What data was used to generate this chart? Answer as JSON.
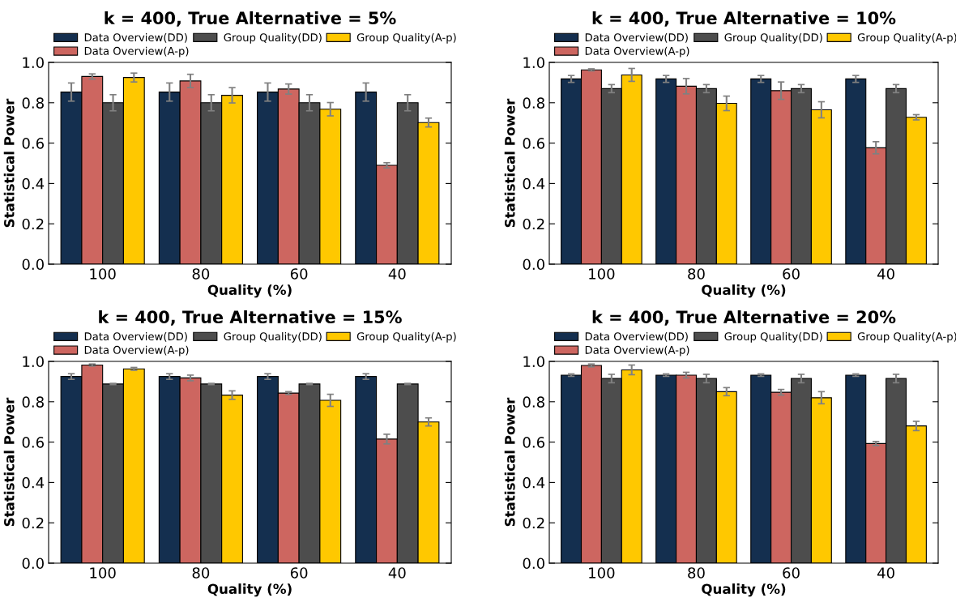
{
  "chart_data": [
    {
      "type": "bar",
      "title": "k = 400, True Alternative = 5%",
      "xlabel": "Quality (%)",
      "ylabel": "Statistical Power",
      "categories": [
        "100",
        "80",
        "60",
        "40"
      ],
      "ylim": [
        0,
        1
      ],
      "yticks": [
        {
          "value": 0,
          "label": "0.0"
        },
        {
          "value": 0.2,
          "label": "0.2"
        },
        {
          "value": 0.4,
          "label": "0.4"
        },
        {
          "value": 0.6,
          "label": "0.6"
        },
        {
          "value": 0.8,
          "label": "0.8"
        },
        {
          "value": 1,
          "label": "1.0"
        }
      ],
      "legend": "top",
      "grid": false,
      "series": [
        {
          "name": "Data Overview(DD)",
          "color": "#142f4f",
          "values": [
            0.853,
            0.853,
            0.853,
            0.853
          ],
          "errors": [
            0.045,
            0.045,
            0.045,
            0.045
          ]
        },
        {
          "name": "Data Overview(A-p)",
          "color": "#cd6660",
          "values": [
            0.93,
            0.908,
            0.868,
            0.49
          ],
          "errors": [
            0.013,
            0.033,
            0.025,
            0.013
          ]
        },
        {
          "name": "Group Quality(DD)",
          "color": "#4d4d4d",
          "values": [
            0.8,
            0.8,
            0.8,
            0.8
          ],
          "errors": [
            0.04,
            0.04,
            0.04,
            0.04
          ]
        },
        {
          "name": "Group Quality(A-p)",
          "color": "#ffc800",
          "values": [
            0.925,
            0.837,
            0.768,
            0.702
          ],
          "errors": [
            0.022,
            0.038,
            0.033,
            0.022
          ]
        }
      ]
    },
    {
      "type": "bar",
      "title": "k = 400, True Alternative = 10%",
      "xlabel": "Quality (%)",
      "ylabel": "Statistical Power",
      "categories": [
        "100",
        "80",
        "60",
        "40"
      ],
      "ylim": [
        0,
        1
      ],
      "yticks": [
        {
          "value": 0,
          "label": "0.0"
        },
        {
          "value": 0.2,
          "label": "0.2"
        },
        {
          "value": 0.4,
          "label": "0.4"
        },
        {
          "value": 0.6,
          "label": "0.6"
        },
        {
          "value": 0.8,
          "label": "0.8"
        },
        {
          "value": 1,
          "label": "1.0"
        }
      ],
      "legend": "top",
      "grid": false,
      "series": [
        {
          "name": "Data Overview(DD)",
          "color": "#142f4f",
          "values": [
            0.918,
            0.918,
            0.918,
            0.918
          ],
          "errors": [
            0.017,
            0.017,
            0.017,
            0.017
          ]
        },
        {
          "name": "Data Overview(A-p)",
          "color": "#cd6660",
          "values": [
            0.963,
            0.882,
            0.86,
            0.577
          ],
          "errors": [
            0.005,
            0.038,
            0.043,
            0.03
          ]
        },
        {
          "name": "Group Quality(DD)",
          "color": "#4d4d4d",
          "values": [
            0.87,
            0.87,
            0.87,
            0.87
          ],
          "errors": [
            0.02,
            0.02,
            0.02,
            0.02
          ]
        },
        {
          "name": "Group Quality(A-p)",
          "color": "#ffc800",
          "values": [
            0.938,
            0.797,
            0.765,
            0.728
          ],
          "errors": [
            0.032,
            0.036,
            0.04,
            0.013
          ]
        }
      ]
    },
    {
      "type": "bar",
      "title": "k = 400, True Alternative = 15%",
      "xlabel": "Quality (%)",
      "ylabel": "Statistical Power",
      "categories": [
        "100",
        "80",
        "60",
        "40"
      ],
      "ylim": [
        0,
        1
      ],
      "yticks": [
        {
          "value": 0,
          "label": "0.0"
        },
        {
          "value": 0.2,
          "label": "0.2"
        },
        {
          "value": 0.4,
          "label": "0.4"
        },
        {
          "value": 0.6,
          "label": "0.6"
        },
        {
          "value": 0.8,
          "label": "0.8"
        },
        {
          "value": 1,
          "label": "1.0"
        }
      ],
      "legend": "top",
      "grid": false,
      "series": [
        {
          "name": "Data Overview(DD)",
          "color": "#142f4f",
          "values": [
            0.925,
            0.925,
            0.925,
            0.925
          ],
          "errors": [
            0.014,
            0.014,
            0.014,
            0.014
          ]
        },
        {
          "name": "Data Overview(A-p)",
          "color": "#cd6660",
          "values": [
            0.982,
            0.918,
            0.843,
            0.615
          ],
          "errors": [
            0.005,
            0.014,
            0.007,
            0.024
          ]
        },
        {
          "name": "Group Quality(DD)",
          "color": "#4d4d4d",
          "values": [
            0.888,
            0.888,
            0.888,
            0.888
          ],
          "errors": [
            0.003,
            0.003,
            0.003,
            0.003
          ]
        },
        {
          "name": "Group Quality(A-p)",
          "color": "#ffc800",
          "values": [
            0.963,
            0.833,
            0.807,
            0.7
          ],
          "errors": [
            0.007,
            0.021,
            0.03,
            0.02
          ]
        }
      ]
    },
    {
      "type": "bar",
      "title": "k = 400, True Alternative = 20%",
      "xlabel": "Quality (%)",
      "ylabel": "Statistical Power",
      "categories": [
        "100",
        "80",
        "60",
        "40"
      ],
      "ylim": [
        0,
        1
      ],
      "yticks": [
        {
          "value": 0,
          "label": "0.0"
        },
        {
          "value": 0.2,
          "label": "0.2"
        },
        {
          "value": 0.4,
          "label": "0.4"
        },
        {
          "value": 0.6,
          "label": "0.6"
        },
        {
          "value": 0.8,
          "label": "0.8"
        },
        {
          "value": 1,
          "label": "1.0"
        }
      ],
      "legend": "top",
      "grid": false,
      "series": [
        {
          "name": "Data Overview(DD)",
          "color": "#142f4f",
          "values": [
            0.932,
            0.932,
            0.932,
            0.932
          ],
          "errors": [
            0.006,
            0.006,
            0.006,
            0.006
          ]
        },
        {
          "name": "Data Overview(A-p)",
          "color": "#cd6660",
          "values": [
            0.98,
            0.932,
            0.847,
            0.593
          ],
          "errors": [
            0.007,
            0.014,
            0.014,
            0.01
          ]
        },
        {
          "name": "Group Quality(DD)",
          "color": "#4d4d4d",
          "values": [
            0.915,
            0.915,
            0.915,
            0.915
          ],
          "errors": [
            0.021,
            0.021,
            0.021,
            0.021
          ]
        },
        {
          "name": "Group Quality(A-p)",
          "color": "#ffc800",
          "values": [
            0.958,
            0.85,
            0.82,
            0.68
          ],
          "errors": [
            0.024,
            0.02,
            0.03,
            0.023
          ]
        }
      ]
    }
  ]
}
